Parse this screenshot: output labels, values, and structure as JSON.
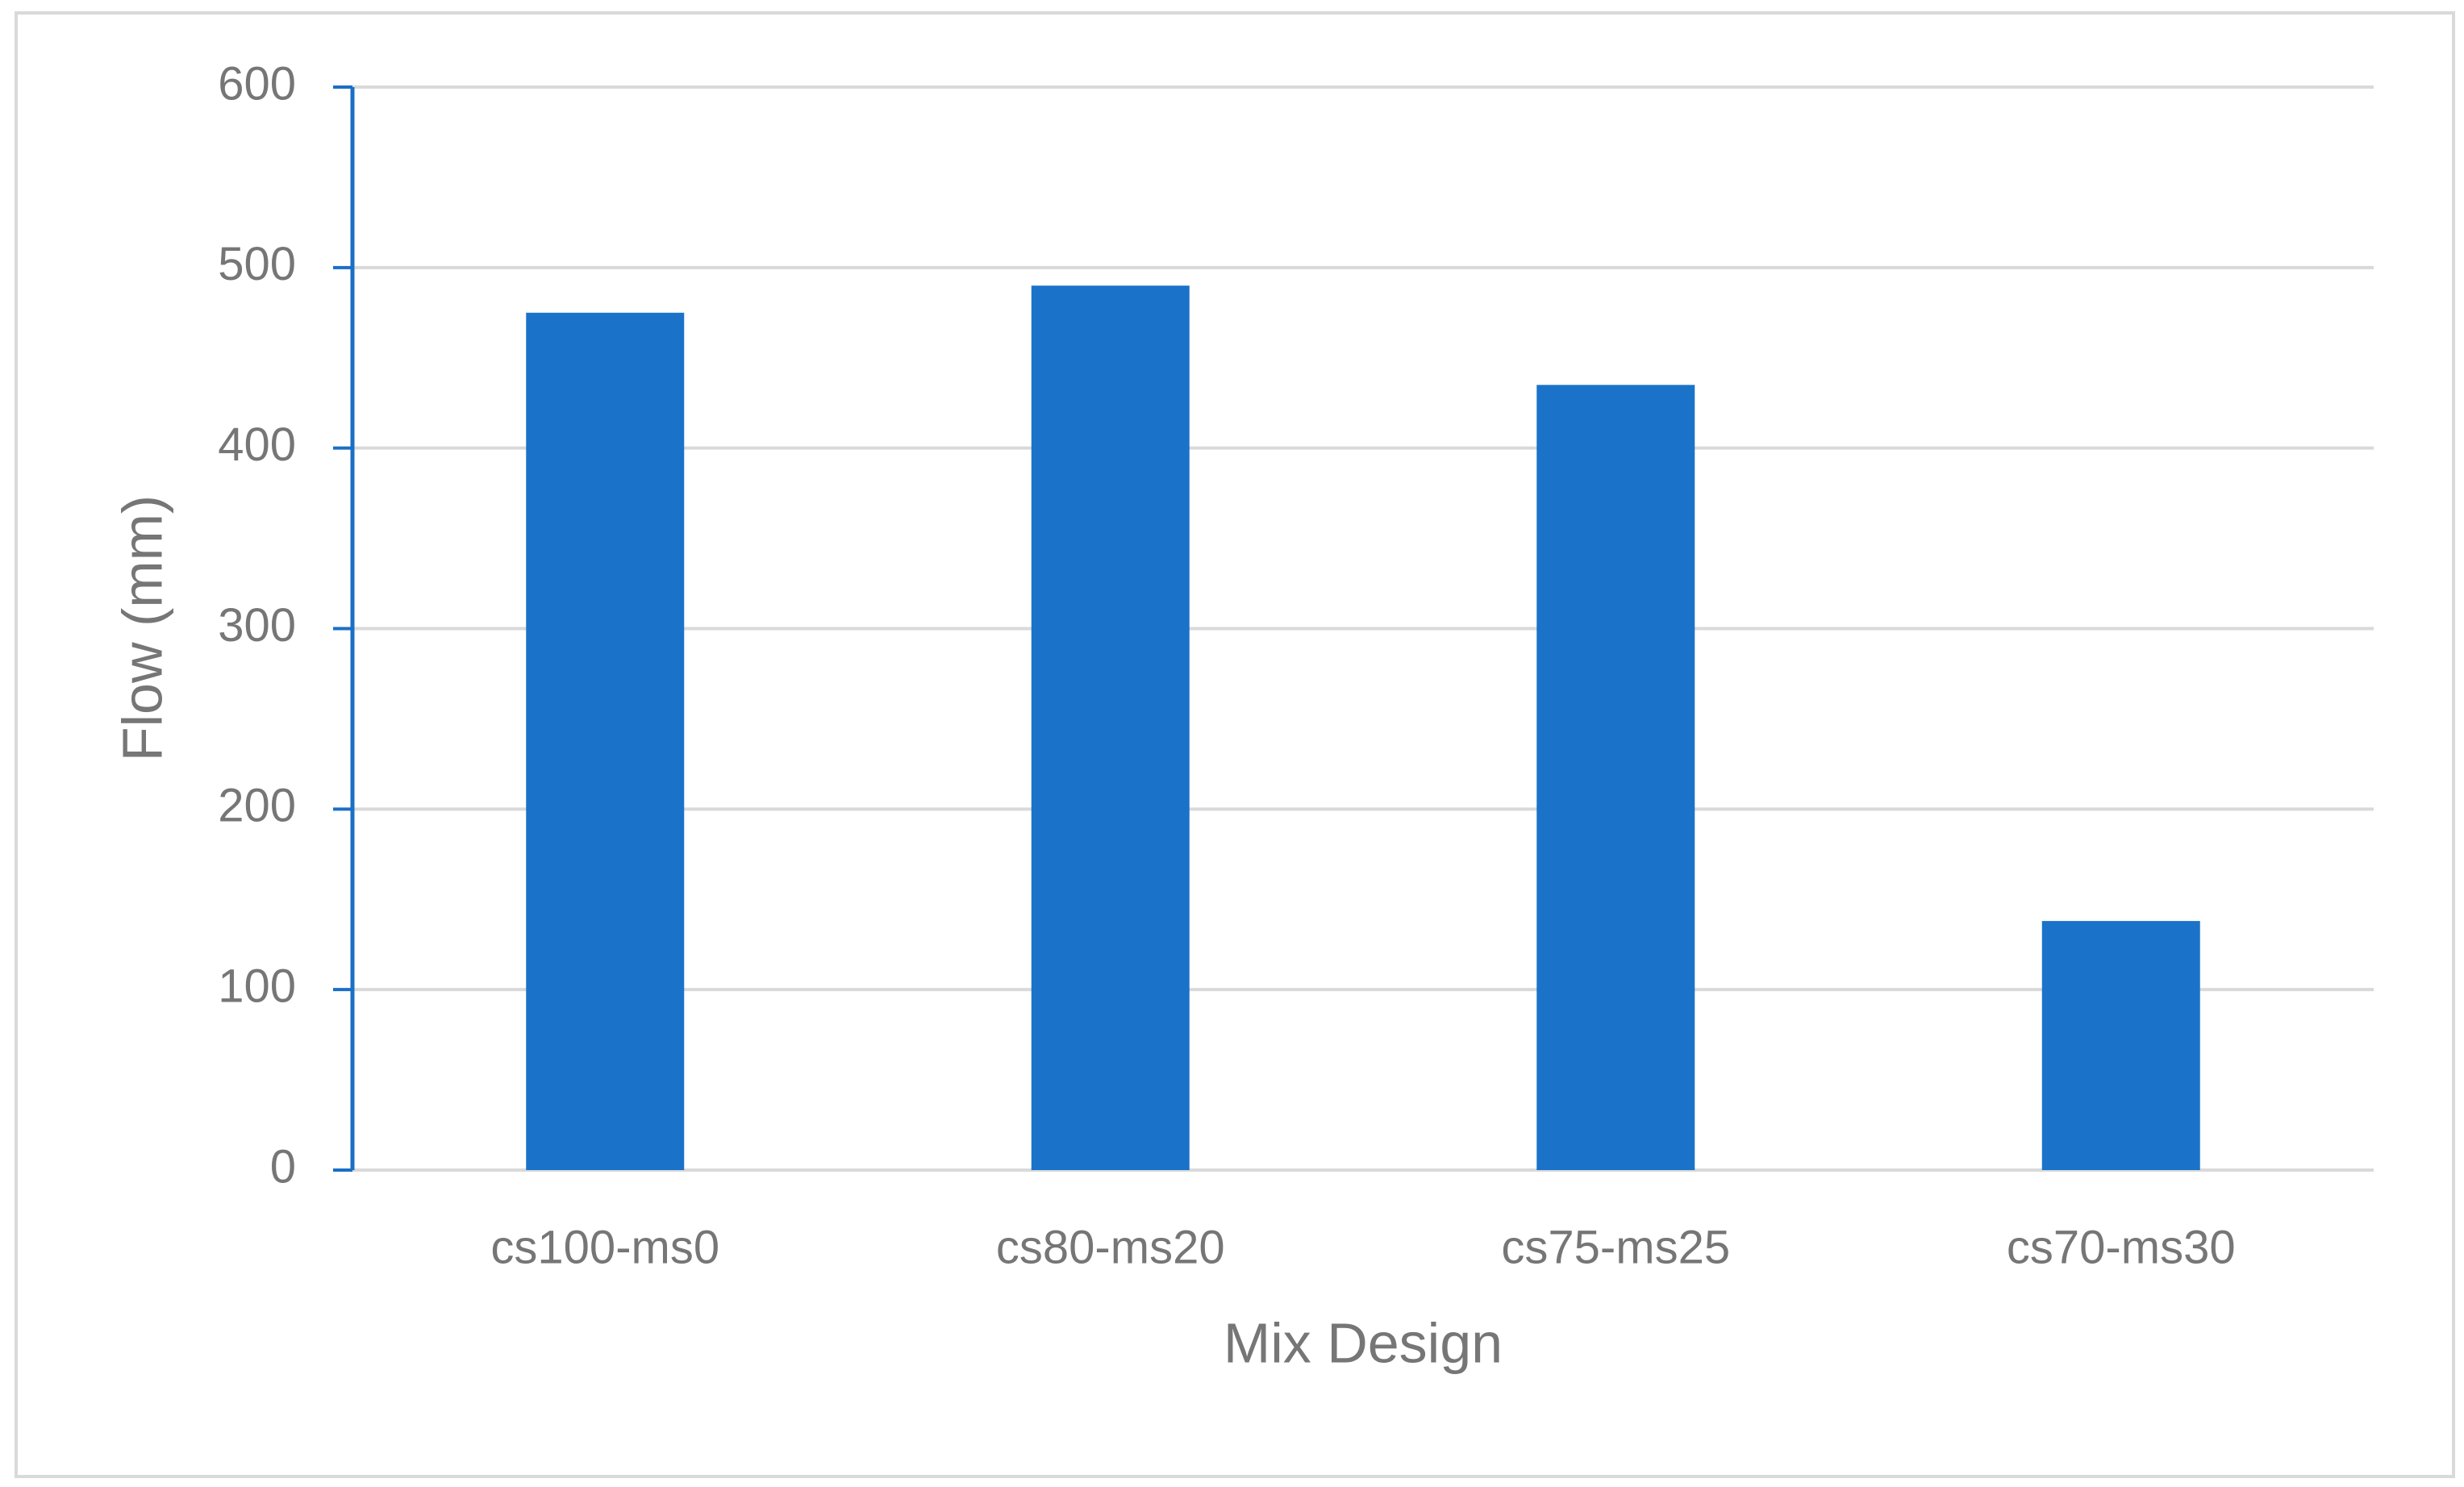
{
  "chart_data": {
    "type": "bar",
    "x_label": "Mix Design",
    "y_label": "Flow (mm)",
    "categories": [
      "cs100-ms0",
      "cs80-ms20",
      "cs75-ms25",
      "cs70-ms30"
    ],
    "values": [
      475,
      490,
      435,
      138
    ],
    "color": "#1a73c9",
    "ylim": [
      0,
      600
    ],
    "yticks": [
      0,
      100,
      200,
      300,
      400,
      500,
      600
    ],
    "grid": true
  }
}
